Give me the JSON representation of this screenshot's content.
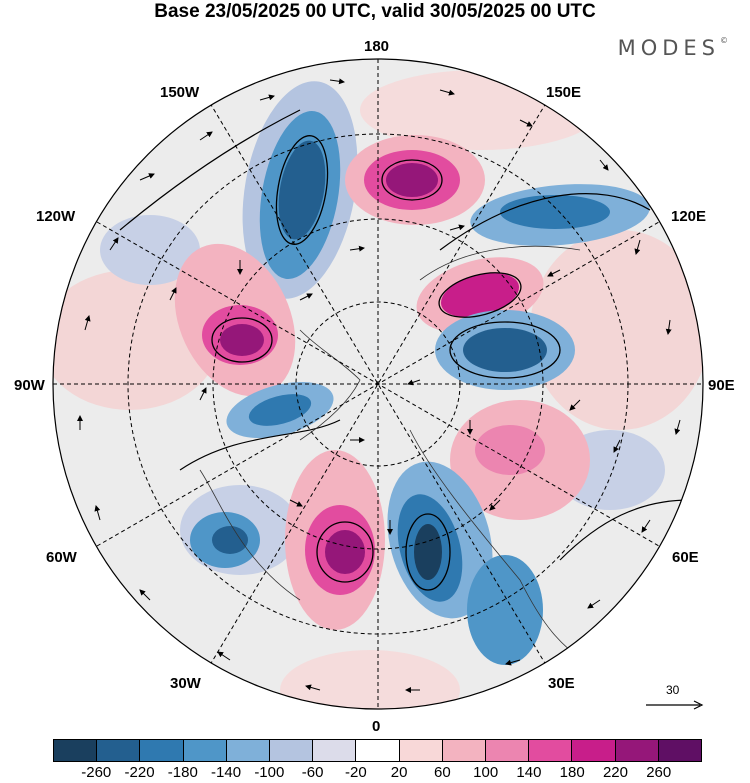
{
  "title": "Base 23/05/2025 00 UTC, valid 30/05/2025 00 UTC",
  "brand": "MODES",
  "brand_mark": "©",
  "map": {
    "projection": "north-polar-stereographic",
    "longitude_labels": {
      "top": "180",
      "bottom": "0",
      "left": "90W",
      "right": "90E",
      "upper_left_1": "150W",
      "upper_left_2": "120W",
      "upper_right_1": "150E",
      "upper_right_2": "120E",
      "lower_left_1": "60W",
      "lower_left_2": "30W",
      "lower_right_1": "60E",
      "lower_right_2": "30E"
    },
    "wind_reference_vector": "30"
  },
  "colorbar": {
    "levels": [
      "-260",
      "-220",
      "-180",
      "-140",
      "-100",
      "-60",
      "-20",
      "20",
      "60",
      "100",
      "140",
      "180",
      "220",
      "260"
    ],
    "colors": [
      "#1a3f5e",
      "#235f8f",
      "#2f79b0",
      "#4f96c8",
      "#7fb0d9",
      "#b4c4e0",
      "#dcdcea",
      "#ffffff",
      "#f8d8d8",
      "#f3b3c0",
      "#ec85b0",
      "#e24c9f",
      "#c81e8a",
      "#951779",
      "#5f0f64"
    ]
  }
}
